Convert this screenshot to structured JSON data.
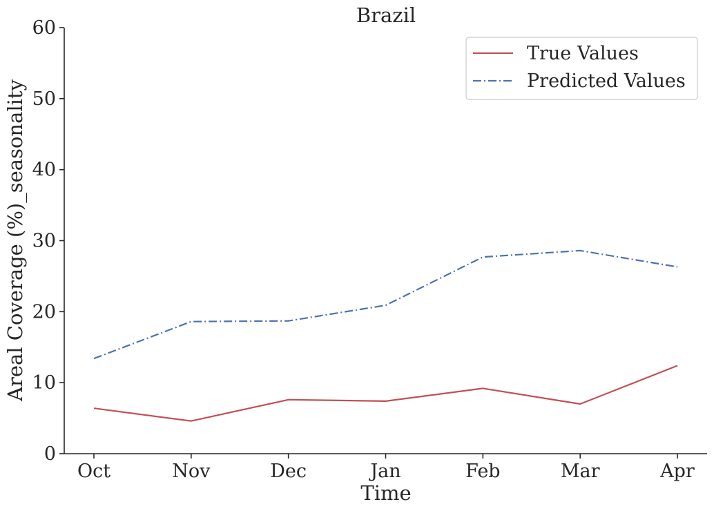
{
  "chart_data": {
    "type": "line",
    "title": "Brazil",
    "xlabel": "Time",
    "ylabel": "Areal Coverage (%)_seasonality",
    "categories": [
      "Oct",
      "Nov",
      "Dec",
      "Jan",
      "Feb",
      "Mar",
      "Apr"
    ],
    "yticks": [
      "0",
      "10",
      "20",
      "30",
      "40",
      "50",
      "60"
    ],
    "ylim": [
      0,
      60
    ],
    "grid": false,
    "legend_position": "top-right",
    "series": [
      {
        "name": "True Values",
        "color": "#c44e52",
        "style": "solid",
        "values": [
          6.4,
          4.6,
          7.6,
          7.4,
          9.2,
          7.0,
          12.4
        ]
      },
      {
        "name": "Predicted Values",
        "color": "#4c72b0",
        "style": "dashdot",
        "values": [
          13.4,
          18.6,
          18.7,
          20.9,
          27.7,
          28.6,
          26.3
        ]
      }
    ]
  }
}
